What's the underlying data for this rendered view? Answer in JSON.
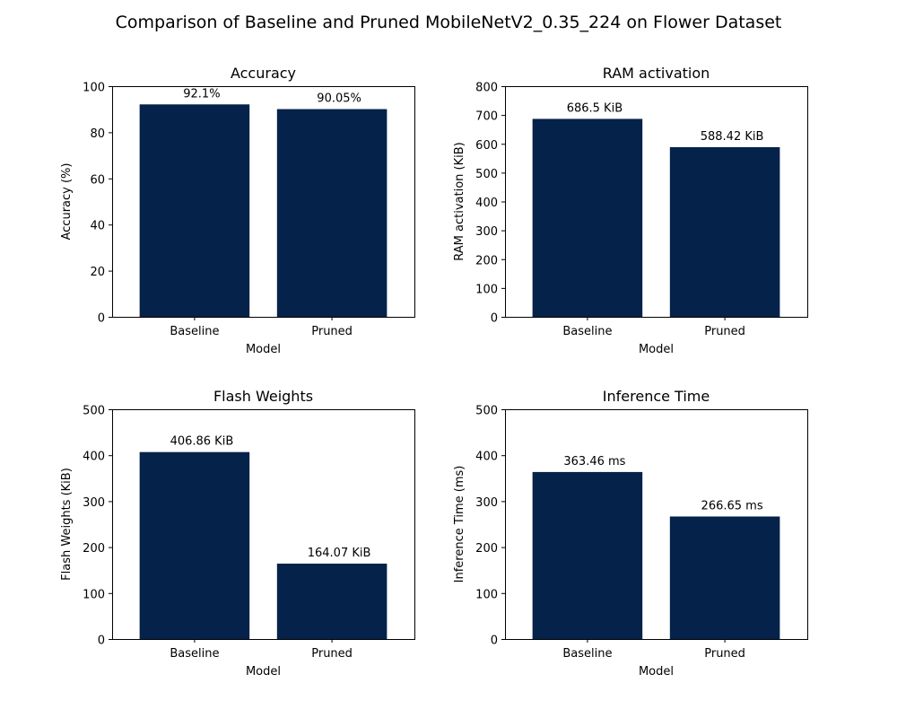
{
  "figure": {
    "title": "Comparison of Baseline and Pruned MobileNetV2_0.35_224 on Flower Dataset"
  },
  "colors": {
    "bar": "#05224A",
    "text": "#000000",
    "background": "#FFFFFF"
  },
  "chart_data": [
    {
      "type": "bar",
      "title": "Accuracy",
      "xlabel": "Model",
      "ylabel": "Accuracy (%)",
      "categories": [
        "Baseline",
        "Pruned"
      ],
      "values": [
        92.1,
        90.05
      ],
      "data_labels": [
        "92.1%",
        "90.05%"
      ],
      "ylim": [
        0,
        100
      ],
      "yticks": [
        0,
        20,
        40,
        60,
        80,
        100
      ],
      "grid": false
    },
    {
      "type": "bar",
      "title": "RAM activation",
      "xlabel": "Model",
      "ylabel": "RAM activation (KiB)",
      "categories": [
        "Baseline",
        "Pruned"
      ],
      "values": [
        686.5,
        588.42
      ],
      "data_labels": [
        "686.5 KiB",
        "588.42 KiB"
      ],
      "ylim": [
        0,
        800
      ],
      "yticks": [
        0,
        100,
        200,
        300,
        400,
        500,
        600,
        700,
        800
      ],
      "grid": false
    },
    {
      "type": "bar",
      "title": "Flash Weights",
      "xlabel": "Model",
      "ylabel": "Flash Weights (KiB)",
      "categories": [
        "Baseline",
        "Pruned"
      ],
      "values": [
        406.86,
        164.07
      ],
      "data_labels": [
        "406.86 KiB",
        "164.07 KiB"
      ],
      "ylim": [
        0,
        500
      ],
      "yticks": [
        0,
        100,
        200,
        300,
        400,
        500
      ],
      "grid": false
    },
    {
      "type": "bar",
      "title": "Inference Time",
      "xlabel": "Model",
      "ylabel": "Inference Time (ms)",
      "categories": [
        "Baseline",
        "Pruned"
      ],
      "values": [
        363.46,
        266.65
      ],
      "data_labels": [
        "363.46 ms",
        "266.65 ms"
      ],
      "ylim": [
        0,
        500
      ],
      "yticks": [
        0,
        100,
        200,
        300,
        400,
        500
      ],
      "grid": false
    }
  ]
}
